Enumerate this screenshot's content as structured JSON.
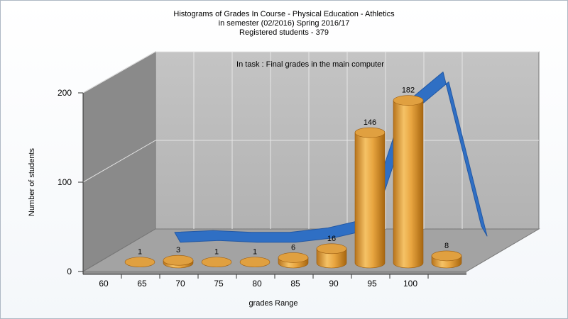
{
  "chart_data": {
    "type": "bar",
    "title_lines": [
      "Histograms of Grades  In Course - Physical Education - Athletics",
      "in semester  (02/2016) Spring 2016/17",
      "Registered students - 379"
    ],
    "annotation": "In task : Final grades in the main computer",
    "xlabel": "grades Range",
    "ylabel": "Number of students",
    "x_ticks": [
      "60",
      "65",
      "70",
      "75",
      "80",
      "85",
      "90",
      "95",
      "100"
    ],
    "y_ticks": [
      0,
      100,
      200
    ],
    "ylim": [
      0,
      200
    ],
    "categories": [
      "60-65",
      "65-70",
      "70-75",
      "75-80",
      "80-85",
      "85-90",
      "90-95",
      "95-100",
      "100"
    ],
    "series": [
      {
        "type": "bar",
        "values": [
          1,
          3,
          1,
          1,
          6,
          16,
          146,
          182,
          8
        ]
      },
      {
        "type": "line",
        "values": [
          1,
          3,
          1,
          1,
          6,
          16,
          146,
          182,
          8
        ]
      }
    ],
    "colors": {
      "bar": "#e8a540",
      "line": "#2f6fc4",
      "wall": "#bcbcbc",
      "side_wall": "#8a8a8a",
      "floor": "#a3a3a3"
    },
    "grid": true,
    "legend": "none"
  }
}
